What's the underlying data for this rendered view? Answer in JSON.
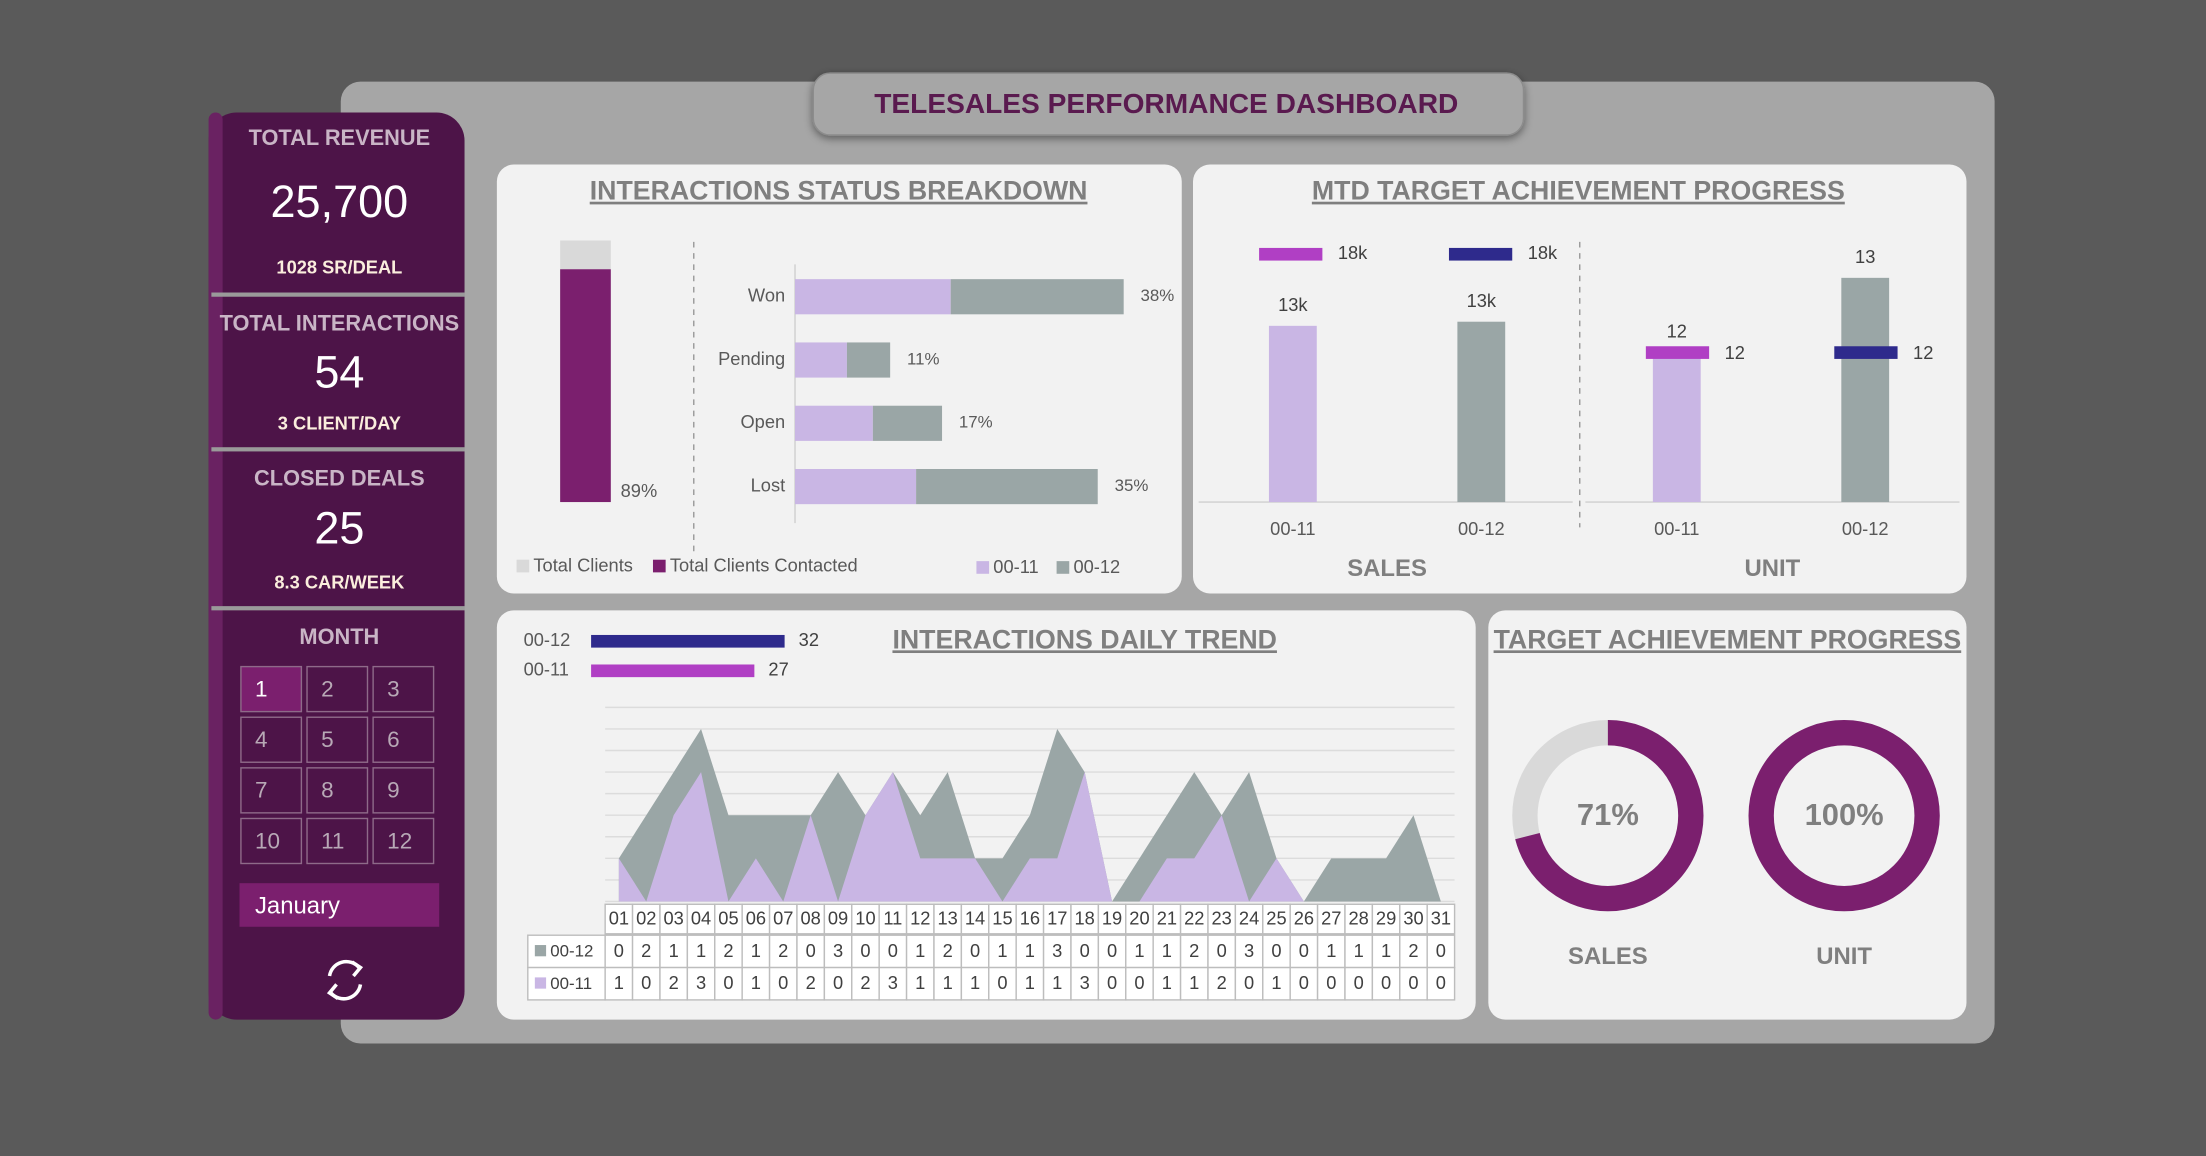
{
  "header": {
    "title": "TELESALES PERFORMANCE DASHBOARD"
  },
  "kpis": [
    {
      "label": "TOTAL REVENUE",
      "value": "25,700",
      "sub": "1028 SR/DEAL"
    },
    {
      "label": "TOTAL INTERACTIONS",
      "value": "54",
      "sub": "3 CLIENT/DAY"
    },
    {
      "label": "CLOSED DEALS",
      "value": "25",
      "sub": "8.3 CAR/WEEK"
    }
  ],
  "month": {
    "label": "MONTH",
    "options": [
      "1",
      "2",
      "3",
      "4",
      "5",
      "6",
      "7",
      "8",
      "9",
      "10",
      "11",
      "12"
    ],
    "active": 0,
    "selected": "January"
  },
  "chart_data": [
    {
      "type": "status",
      "title": "INTERACTIONS STATUS BREAKDOWN",
      "clients": {
        "series": [
          {
            "name": "Total Clients",
            "color": "#d9d9d9",
            "values": [
              100
            ]
          },
          {
            "name": "Total Clients Contacted",
            "color": "#7b1f6e",
            "values": [
              89
            ],
            "value_labels": [
              "89%"
            ]
          }
        ],
        "ylim": [
          0,
          100
        ]
      },
      "status": {
        "categories": [
          "Won",
          "Pending",
          "Open",
          "Lost"
        ],
        "series": [
          {
            "name": "00-11",
            "color": "#c9b6e4",
            "values": [
              18,
              6,
              9,
              14
            ]
          },
          {
            "name": "00-12",
            "color": "#9aa6a6",
            "values": [
              20,
              5,
              8,
              21
            ]
          }
        ],
        "totals": [
          38,
          11,
          17,
          35
        ],
        "total_labels": [
          "38%",
          "11%",
          "17%",
          "35%"
        ],
        "xlim": [
          0,
          40
        ]
      }
    },
    {
      "type": "target",
      "title": "MTD TARGET ACHIEVEMENT PROGRESS",
      "categories": [
        "00-11",
        "00-12"
      ],
      "colors": [
        "#c9b6e4",
        "#9aa6a6"
      ],
      "target_colors": [
        "#b03fc4",
        "#2e2a8c"
      ],
      "groups": [
        {
          "name": "SALES",
          "values": [
            12800,
            13100
          ],
          "value_labels": [
            "13k",
            "13k"
          ],
          "targets": [
            18000,
            18000
          ],
          "target_labels": [
            "18k",
            "18k"
          ],
          "ylim": [
            0,
            19000
          ]
        },
        {
          "name": "UNIT",
          "values": [
            12,
            13
          ],
          "targets": [
            12,
            12
          ],
          "ylim": [
            10,
            13.5
          ]
        }
      ]
    },
    {
      "type": "area",
      "title": "INTERACTIONS DAILY TREND",
      "stacked": true,
      "categories": [
        "01",
        "02",
        "03",
        "04",
        "05",
        "06",
        "07",
        "08",
        "09",
        "10",
        "11",
        "12",
        "13",
        "14",
        "15",
        "16",
        "17",
        "18",
        "19",
        "20",
        "21",
        "22",
        "23",
        "24",
        "25",
        "26",
        "27",
        "28",
        "29",
        "30",
        "31"
      ],
      "series": [
        {
          "name": "00-12",
          "color": "#9aa6a6",
          "total_color": "#2e2a8c",
          "total": 32,
          "values": [
            0,
            2,
            1,
            1,
            2,
            1,
            2,
            0,
            3,
            0,
            0,
            1,
            2,
            0,
            1,
            1,
            3,
            0,
            0,
            1,
            1,
            2,
            0,
            3,
            0,
            0,
            1,
            1,
            1,
            2,
            0
          ]
        },
        {
          "name": "00-11",
          "color": "#c9b6e4",
          "total_color": "#b03fc4",
          "total": 27,
          "values": [
            1,
            0,
            2,
            3,
            0,
            1,
            0,
            2,
            0,
            2,
            3,
            1,
            1,
            1,
            0,
            1,
            1,
            3,
            0,
            0,
            1,
            1,
            2,
            0,
            1,
            0,
            0,
            0,
            0,
            0,
            0
          ]
        }
      ],
      "ylim": [
        0,
        4.5
      ],
      "yticks": [
        0,
        0.5,
        1,
        1.5,
        2,
        2.5,
        3,
        3.5,
        4,
        4.5
      ],
      "grid": true
    },
    {
      "type": "donut",
      "title": "TARGET ACHIEVEMENT PROGRESS",
      "categories": [
        "SALES",
        "UNIT"
      ],
      "values": [
        71,
        100
      ],
      "value_labels": [
        "71%",
        "100%"
      ],
      "color": "#7b1f6e",
      "track_color": "#d9d9d9"
    }
  ]
}
